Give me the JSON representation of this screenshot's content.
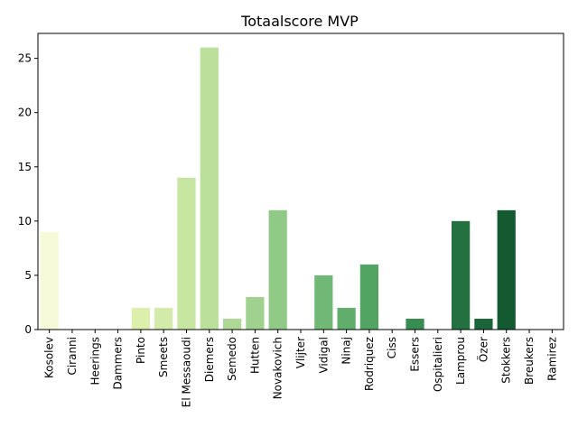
{
  "chart_data": {
    "type": "bar",
    "title": "Totaalscore MVP",
    "xlabel": "",
    "ylabel": "",
    "ylim": [
      0,
      27.3
    ],
    "yticks": [
      0,
      5,
      10,
      15,
      20,
      25
    ],
    "grid": false,
    "legend": "none",
    "categories": [
      "Kosolev",
      "Ciranni",
      "Heerings",
      "Dammers",
      "Pinto",
      "Smeets",
      "El Messaoudi",
      "Diemers",
      "Semedo",
      "Hutten",
      "Novakovich",
      "Vlijter",
      "Vidigal",
      "Ninaj",
      "Rodriquez",
      "Ciss",
      "Essers",
      "Ospitalieri",
      "Lamprou",
      "Özer",
      "Stokkers",
      "Breukers",
      "Ramirez"
    ],
    "values": [
      9,
      0,
      0,
      0,
      2,
      2,
      14,
      26,
      1,
      3,
      11,
      0,
      5,
      2,
      6,
      0,
      1,
      0,
      10,
      1,
      11,
      0,
      0
    ],
    "colors": [
      "#f7fad8",
      "#f2f8cd",
      "#ecf6c2",
      "#e5f3b8",
      "#dcefad",
      "#d2eba8",
      "#c7e6a1",
      "#bbe09b",
      "#aed895",
      "#a0d18f",
      "#91c987",
      "#81c07e",
      "#71b775",
      "#61ad6c",
      "#51a462",
      "#439b5a",
      "#388e52",
      "#2d7f49",
      "#237140",
      "#1b6538",
      "#135a31",
      "#0d4f2b",
      "#084626"
    ]
  }
}
